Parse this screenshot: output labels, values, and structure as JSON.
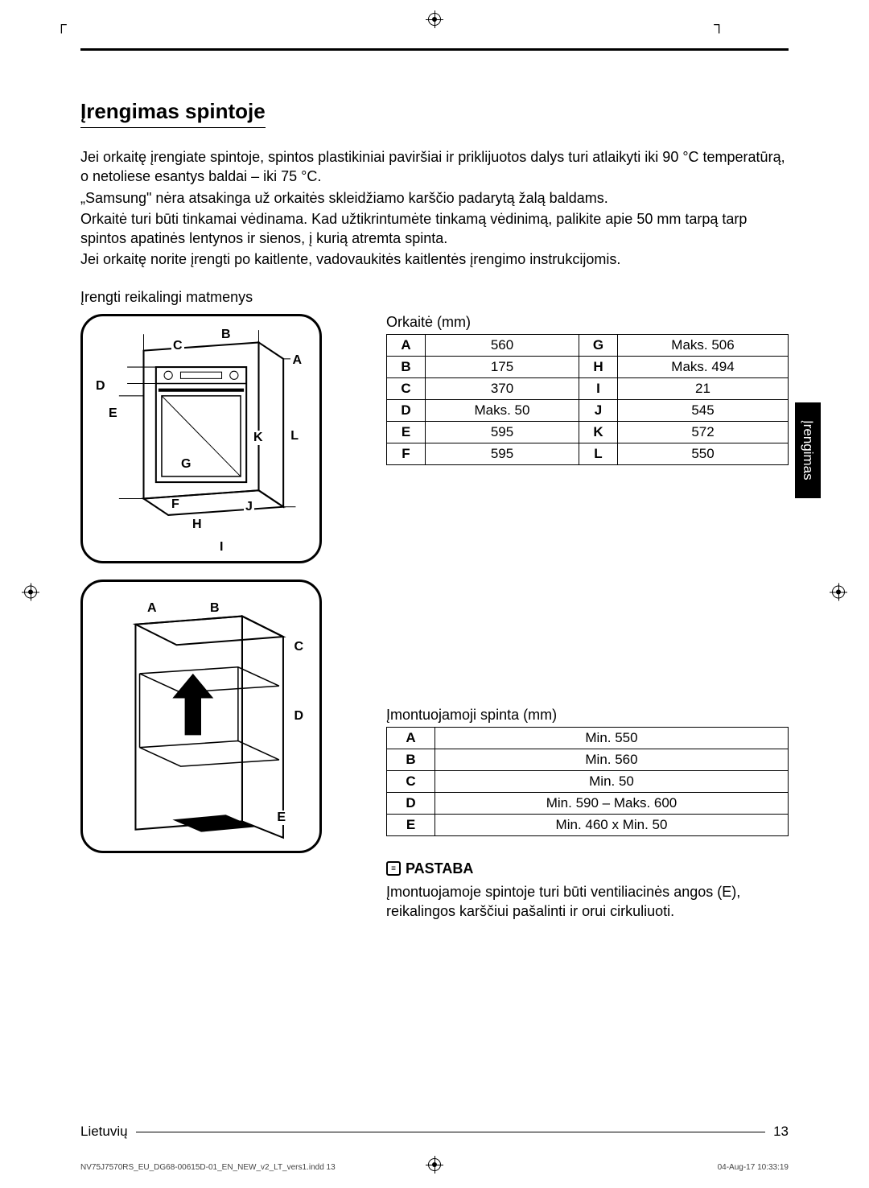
{
  "crop_short": "⊥",
  "heading": "Įrengimas spintoje",
  "paragraphs": [
    "Jei orkaitę įrengiate spintoje, spintos plastikiniai paviršiai ir priklijuotos dalys turi atlaikyti iki 90 °C temperatūrą, o netoliese esantys baldai – iki 75 °C.",
    "„Samsung\" nėra atsakinga už orkaitės skleidžiamo karščio padarytą žalą baldams.",
    "Orkaitė turi būti tinkamai vėdinama. Kad užtikrintumėte tinkamą vėdinimą, palikite apie 50 mm tarpą tarp spintos apatinės lentynos ir sienos, į kurią atremta spinta.",
    "Jei orkaitę norite įrengti po kaitlente, vadovaukitės kaitlentės įrengimo instrukcijomis."
  ],
  "subheading": "Įrengti reikalingi matmenys",
  "oven_table_caption": "Orkaitė (mm)",
  "oven_table": [
    {
      "k1": "A",
      "v1": "560",
      "k2": "G",
      "v2": "Maks. 506"
    },
    {
      "k1": "B",
      "v1": "175",
      "k2": "H",
      "v2": "Maks. 494"
    },
    {
      "k1": "C",
      "v1": "370",
      "k2": "I",
      "v2": "21"
    },
    {
      "k1": "D",
      "v1": "Maks. 50",
      "k2": "J",
      "v2": "545"
    },
    {
      "k1": "E",
      "v1": "595",
      "k2": "K",
      "v2": "572"
    },
    {
      "k1": "F",
      "v1": "595",
      "k2": "L",
      "v2": "550"
    }
  ],
  "cabinet_table_caption": "Įmontuojamoji spinta (mm)",
  "cabinet_table": [
    {
      "k": "A",
      "v": "Min. 550"
    },
    {
      "k": "B",
      "v": "Min. 560"
    },
    {
      "k": "C",
      "v": "Min. 50"
    },
    {
      "k": "D",
      "v": "Min. 590 – Maks. 600"
    },
    {
      "k": "E",
      "v": "Min. 460 x Min. 50"
    }
  ],
  "note_label": "PASTABA",
  "note_text": "Įmontuojamoje spintoje turi būti ventiliacinės angos (E), reikalingos karščiui pašalinti ir orui cirkuliuoti.",
  "side_tab": "Įrengimas",
  "footer_lang": "Lietuvių",
  "footer_page": "13",
  "tiny_left": "NV75J7570RS_EU_DG68-00615D-01_EN_NEW_v2_LT_vers1.indd   13",
  "tiny_right": "04-Aug-17   10:33:19",
  "labels_oven": [
    "A",
    "B",
    "C",
    "D",
    "E",
    "F",
    "G",
    "H",
    "I",
    "J",
    "K",
    "L"
  ],
  "labels_cabinet": [
    "A",
    "B",
    "C",
    "D",
    "E"
  ]
}
